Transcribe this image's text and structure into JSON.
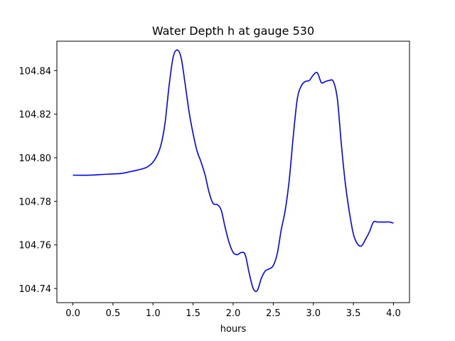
{
  "chart_data": {
    "type": "line",
    "title": "Water Depth h at gauge 530",
    "xlabel": "hours",
    "ylabel": "",
    "xlim": [
      -0.2,
      4.2
    ],
    "ylim": [
      104.7335,
      104.8535
    ],
    "xticks": [
      0.0,
      0.5,
      1.0,
      1.5,
      2.0,
      2.5,
      3.0,
      3.5,
      4.0
    ],
    "xtick_labels": [
      "0.0",
      "0.5",
      "1.0",
      "1.5",
      "2.0",
      "2.5",
      "3.0",
      "3.5",
      "4.0"
    ],
    "yticks": [
      104.74,
      104.76,
      104.78,
      104.8,
      104.82,
      104.84
    ],
    "ytick_labels": [
      "104.74",
      "104.76",
      "104.78",
      "104.80",
      "104.82",
      "104.84"
    ],
    "grid": false,
    "series": [
      {
        "color": "#0000ff",
        "x": [
          0.0,
          0.2,
          0.4,
          0.6,
          0.7,
          0.8,
          0.9,
          0.95,
          1.0,
          1.05,
          1.1,
          1.15,
          1.2,
          1.25,
          1.3,
          1.35,
          1.4,
          1.45,
          1.5,
          1.55,
          1.6,
          1.65,
          1.7,
          1.75,
          1.8,
          1.85,
          1.9,
          1.95,
          2.0,
          2.05,
          2.1,
          2.15,
          2.2,
          2.25,
          2.3,
          2.35,
          2.4,
          2.45,
          2.5,
          2.55,
          2.6,
          2.65,
          2.7,
          2.75,
          2.8,
          2.85,
          2.9,
          2.95,
          3.0,
          3.05,
          3.1,
          3.15,
          3.2,
          3.25,
          3.3,
          3.35,
          3.4,
          3.45,
          3.5,
          3.55,
          3.6,
          3.65,
          3.7,
          3.75,
          3.8,
          3.85,
          3.9,
          3.95,
          4.0
        ],
        "y": [
          104.792,
          104.792,
          104.7924,
          104.7928,
          104.7935,
          104.7943,
          104.7953,
          104.7963,
          104.798,
          104.801,
          104.806,
          104.816,
          104.833,
          104.846,
          104.8495,
          104.846,
          104.834,
          104.821,
          104.811,
          104.803,
          104.798,
          104.792,
          104.784,
          104.779,
          104.7785,
          104.776,
          104.768,
          104.761,
          104.7565,
          104.7555,
          104.7565,
          104.7555,
          104.747,
          104.74,
          104.739,
          104.7445,
          104.748,
          104.749,
          104.7505,
          104.756,
          104.767,
          104.776,
          104.79,
          104.81,
          104.827,
          104.833,
          104.835,
          104.8355,
          104.838,
          104.839,
          104.8345,
          104.835,
          104.8355,
          104.835,
          104.827,
          104.806,
          104.788,
          104.775,
          104.765,
          104.7605,
          104.7595,
          104.7625,
          104.766,
          104.7705,
          104.7705,
          104.7705,
          104.7705,
          104.7705,
          104.77
        ]
      }
    ]
  }
}
